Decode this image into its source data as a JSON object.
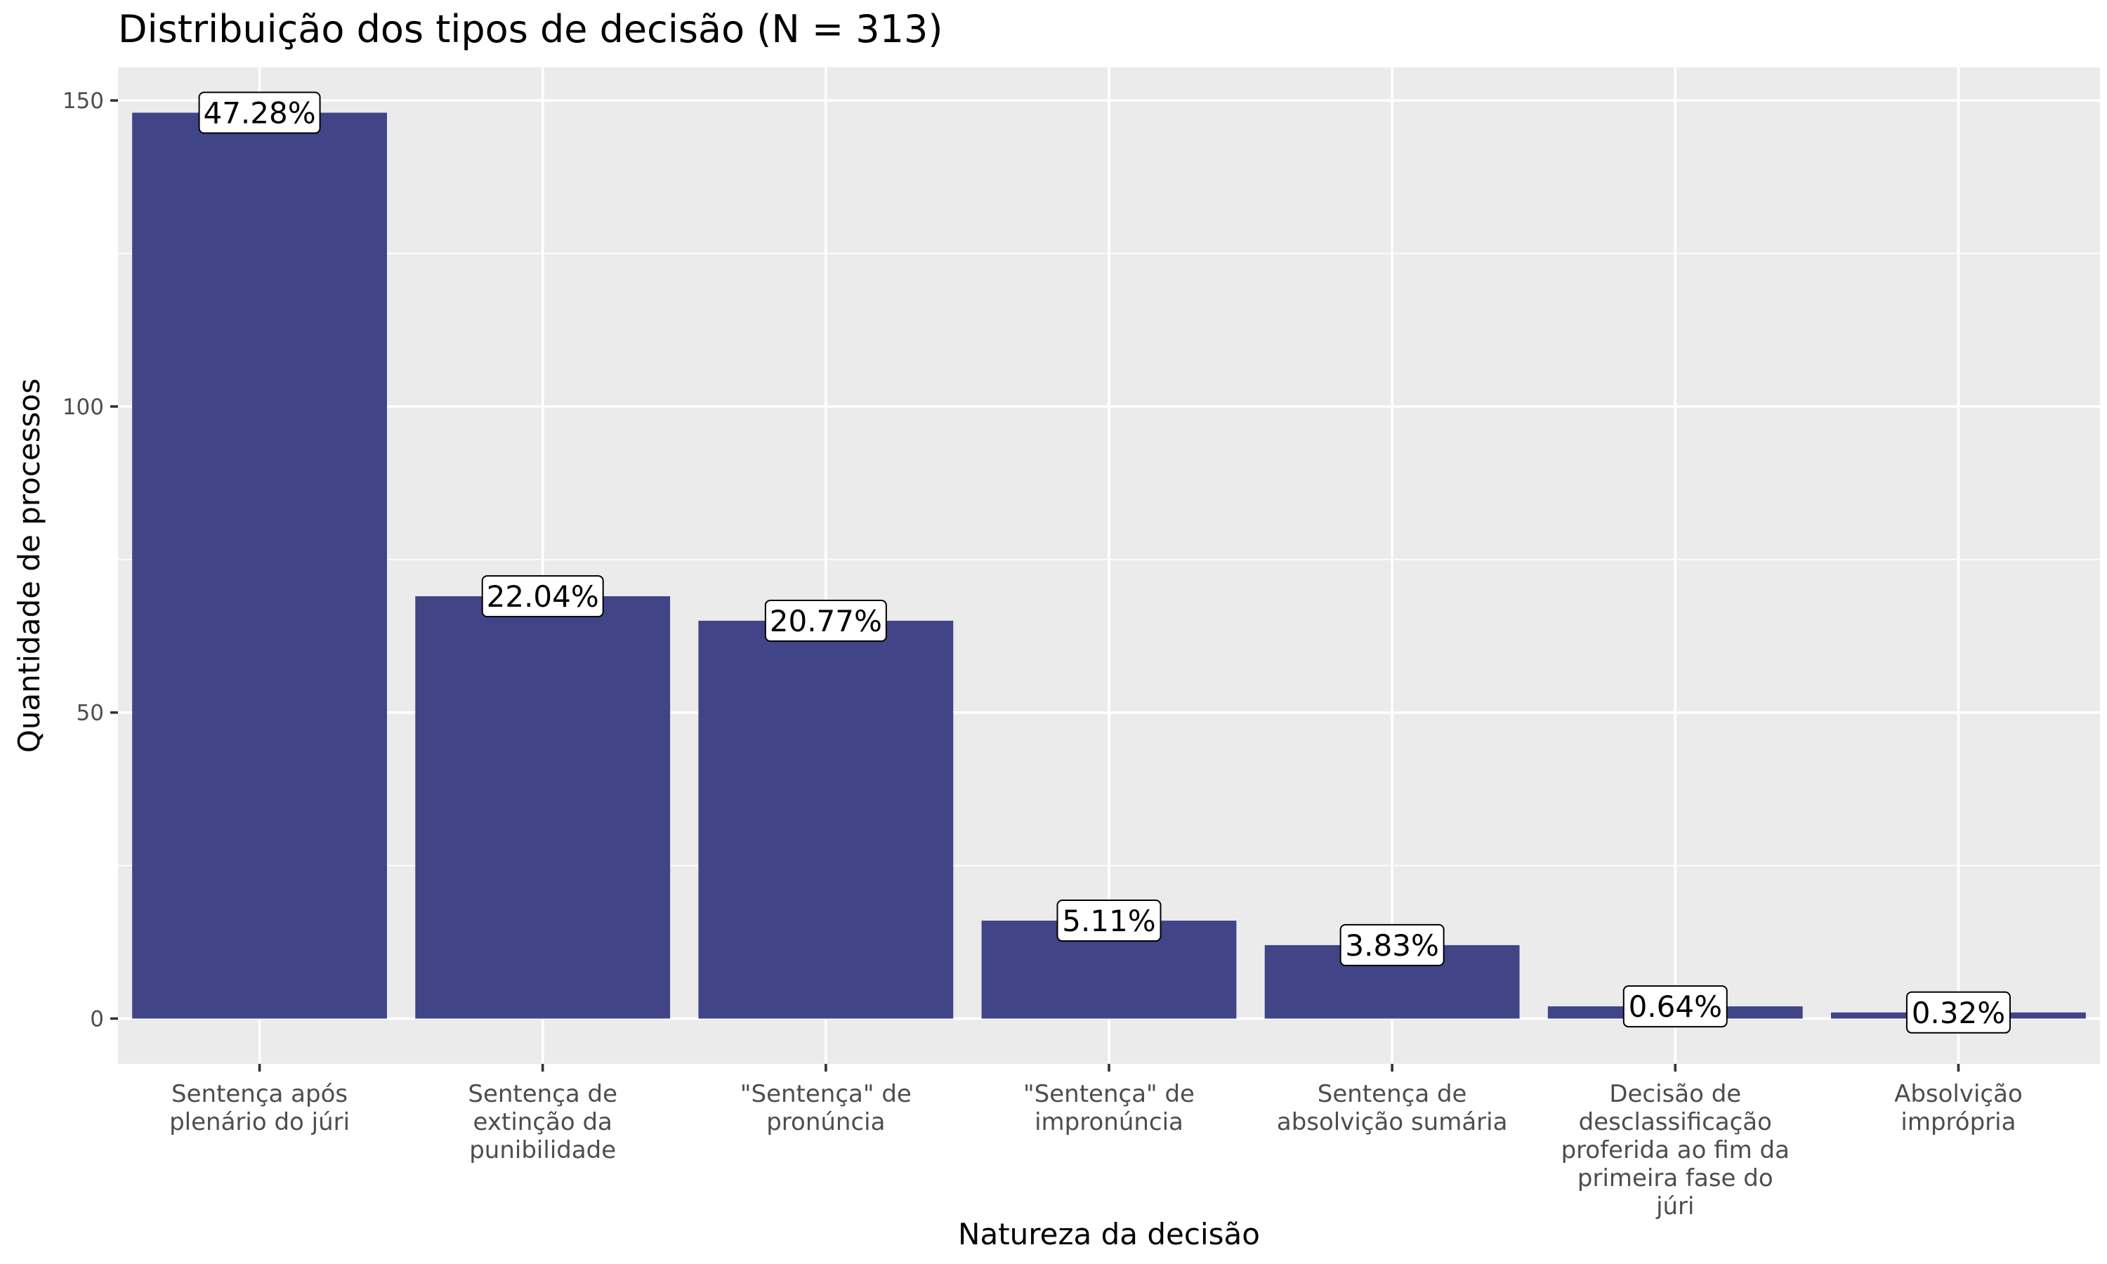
{
  "chart_data": {
    "type": "bar",
    "title": "Distribuição dos tipos de decisão (N = 313)",
    "xlabel": "Natureza da decisão",
    "ylabel": "Quantidade de processos",
    "categories": [
      "Sentença após plenário do júri",
      "Sentença de extinção da punibilidade",
      "\"Sentença\" de pronúncia",
      "\"Sentença\" de impronúncia",
      "Sentença de absolvição sumária",
      "Decisão de desclassificação proferida ao fim da primeira fase do júri",
      "Absolvição imprópria"
    ],
    "category_lines": [
      [
        "Sentença após",
        "plenário do júri"
      ],
      [
        "Sentença de",
        "extinção da",
        "punibilidade"
      ],
      [
        "\"Sentença\" de",
        "pronúncia"
      ],
      [
        "\"Sentença\" de",
        "impronúncia"
      ],
      [
        "Sentença de",
        "absolvição sumária"
      ],
      [
        "Decisão de",
        "desclassificação",
        "proferida ao fim da",
        "primeira fase do",
        "júri"
      ],
      [
        "Absolvição",
        "imprópria"
      ]
    ],
    "values": [
      148,
      69,
      65,
      16,
      12,
      2,
      1
    ],
    "labels": [
      "47.28%",
      "22.04%",
      "20.77%",
      "5.11%",
      "3.83%",
      "0.64%",
      "0.32%"
    ],
    "ylim": [
      -7.4,
      155.4
    ],
    "yticks": [
      0,
      50,
      100,
      150
    ],
    "grid": true,
    "bar_color": "#414487",
    "panel_color": "#ebebeb",
    "grid_color": "#ffffff"
  }
}
